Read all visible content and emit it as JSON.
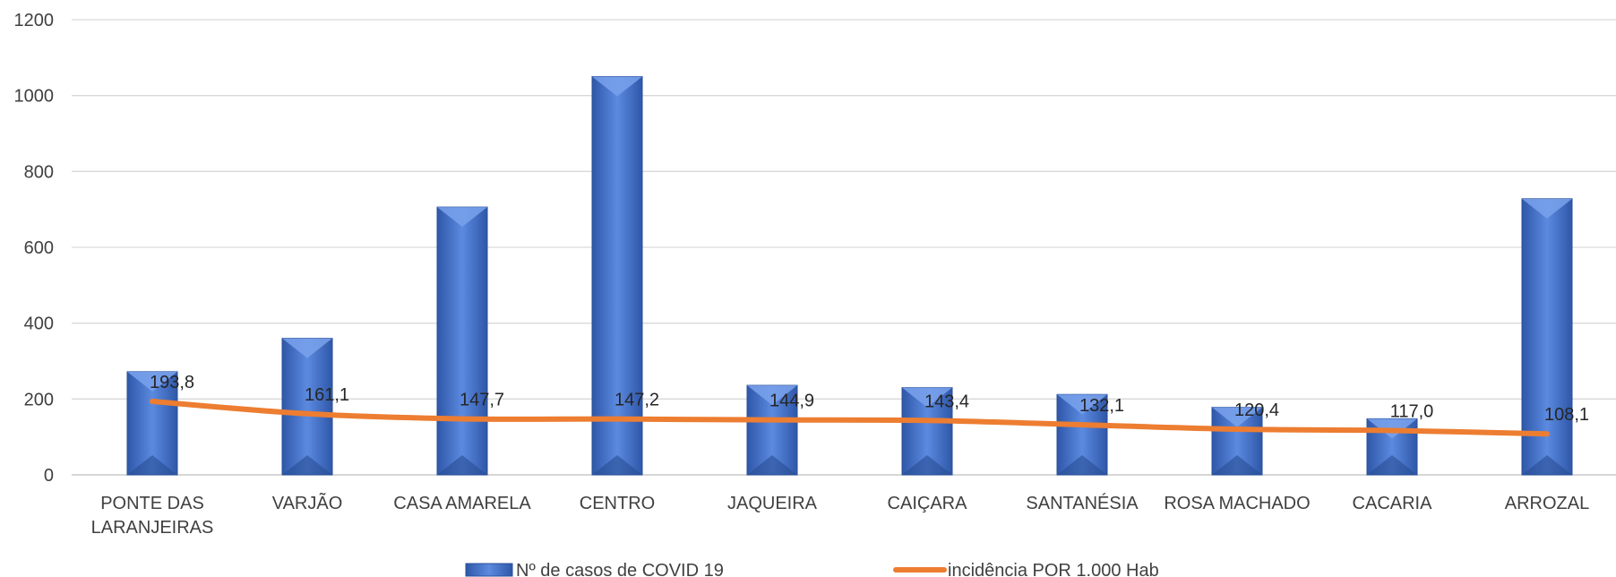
{
  "chart_data": {
    "type": "bar",
    "categories": [
      [
        "PONTE DAS",
        "LARANJEIRAS"
      ],
      [
        "VARJÃO"
      ],
      [
        "CASA AMARELA"
      ],
      [
        "CENTRO"
      ],
      [
        "JAQUEIRA"
      ],
      [
        "CAIÇARA"
      ],
      [
        "SANTANÉSIA"
      ],
      [
        "ROSA MACHADO"
      ],
      [
        "CACARIA"
      ],
      [
        "ARROZAL"
      ]
    ],
    "ylim": [
      0,
      1200
    ],
    "yticks": [
      0,
      200,
      400,
      600,
      800,
      1000,
      1200
    ],
    "grid": true,
    "legend_position": "bottom",
    "series": [
      {
        "name": "Nº de casos de COVID 19",
        "type": "bar",
        "color": "#4472C4",
        "values": [
          272,
          360,
          706,
          1050,
          236,
          230,
          212,
          178,
          148,
          728
        ]
      },
      {
        "name": "incidência POR 1.000 Hab",
        "type": "line",
        "color": "#ED7D31",
        "values": [
          193.8,
          161.1,
          147.7,
          147.2,
          144.9,
          143.4,
          132.1,
          120.4,
          117.0,
          108.1
        ],
        "labels": [
          "193,8",
          "161,1",
          "147,7",
          "147,2",
          "144,9",
          "143,4",
          "132,1",
          "120,4",
          "117,0",
          "108,1"
        ]
      }
    ]
  }
}
